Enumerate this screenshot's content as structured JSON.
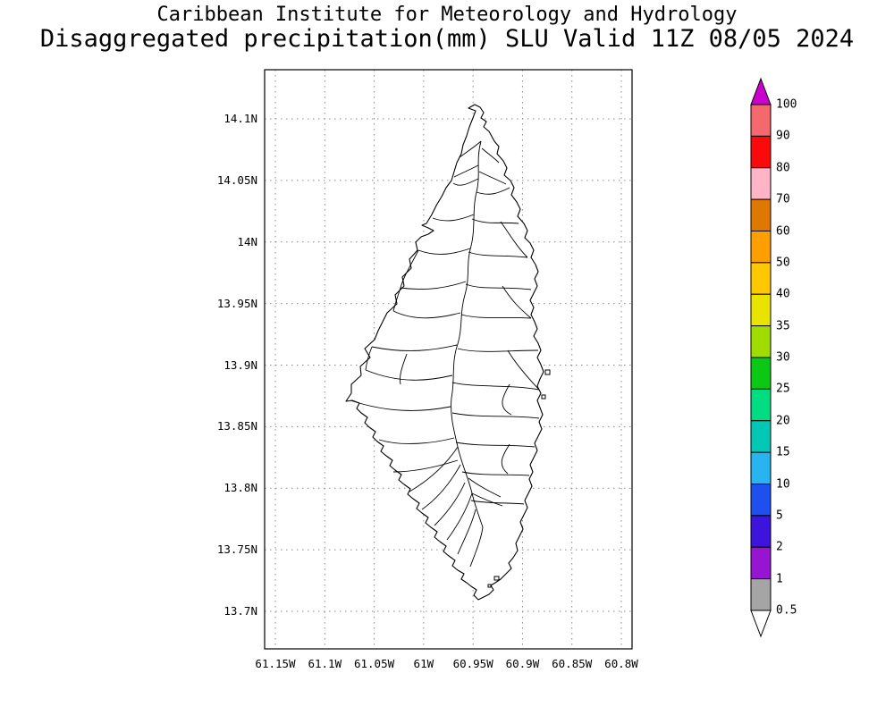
{
  "header": {
    "line1": "Caribbean Institute for Meteorology and Hydrology",
    "line2": "Disaggregated precipitation(mm) SLU Valid 11Z 08/05 2024"
  },
  "map": {
    "lat_ticks": [
      "14.1N",
      "14.05N",
      "14N",
      "13.95N",
      "13.9N",
      "13.85N",
      "13.8N",
      "13.75N",
      "13.7N"
    ],
    "lon_ticks": [
      "61.15W",
      "61.1W",
      "61.05W",
      "61W",
      "60.95W",
      "60.9W",
      "60.85W",
      "60.8W"
    ]
  },
  "colorbar": {
    "labels": [
      "100",
      "90",
      "80",
      "70",
      "60",
      "50",
      "40",
      "35",
      "30",
      "25",
      "20",
      "15",
      "10",
      "5",
      "2",
      "1",
      "0.5"
    ],
    "top_arrow_color": "#cc00cc",
    "segment_colors": [
      "#f4696e",
      "#fa0a0a",
      "#ffb4c8",
      "#e07800",
      "#ff9e00",
      "#ffc800",
      "#e8e400",
      "#a0dc00",
      "#0ac814",
      "#00dc82",
      "#00c8b4",
      "#28b4f0",
      "#1e50f0",
      "#3c14dc",
      "#9614d2",
      "#a5a5a5"
    ],
    "bottom_arrow_color": "#ffffff"
  },
  "chart_data": {
    "type": "heatmap",
    "title": "Disaggregated precipitation(mm) SLU Valid 11Z 08/05 2024",
    "organization": "Caribbean Institute for Meteorology and Hydrology",
    "units": "mm",
    "valid_time": "11Z 08/05 2024",
    "x_ticks": [
      "61.15W",
      "61.1W",
      "61.05W",
      "61W",
      "60.95W",
      "60.9W",
      "60.85W",
      "60.8W"
    ],
    "y_ticks": [
      "14.1N",
      "14.05N",
      "14N",
      "13.95N",
      "13.9N",
      "13.85N",
      "13.8N",
      "13.75N",
      "13.7N"
    ],
    "colorbar_levels_mm": [
      0.5,
      1,
      2,
      5,
      10,
      15,
      20,
      25,
      30,
      35,
      40,
      50,
      60,
      70,
      80,
      90,
      100
    ],
    "grid": "dotted",
    "legend_position": "right",
    "shaded_precipitation": "none visible on island (all values below 0.5 mm)"
  }
}
